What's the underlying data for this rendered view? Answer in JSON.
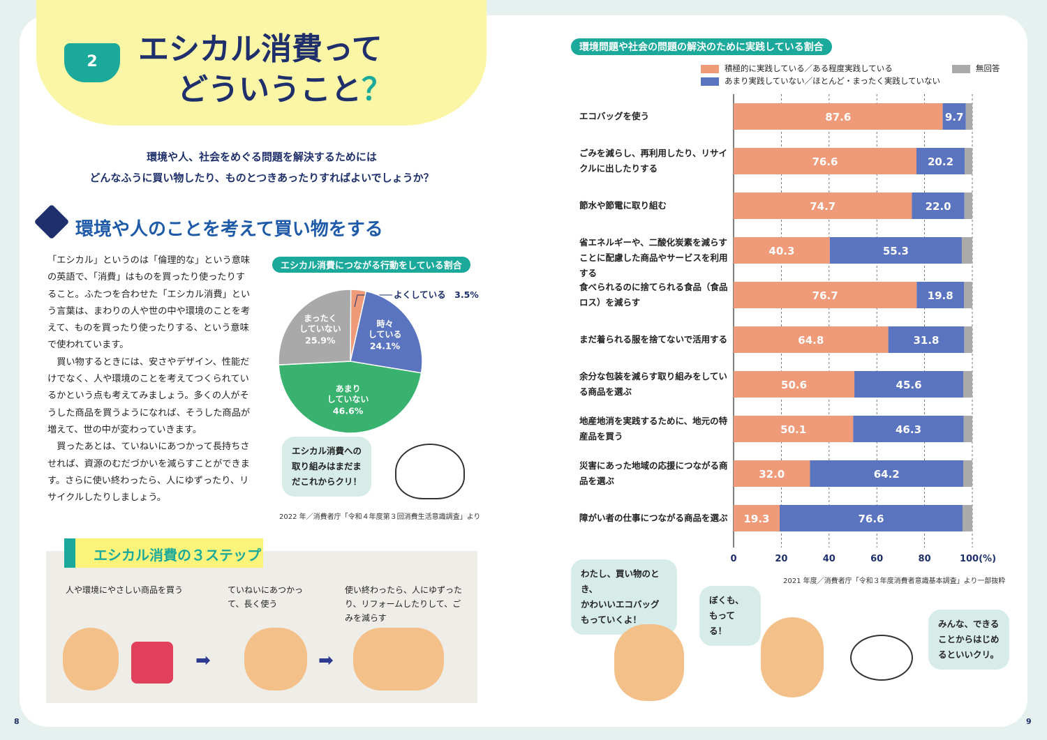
{
  "left": {
    "chapter_number": "2",
    "title_line1": "エシカル消費って",
    "title_line2": "どういうこと",
    "title_mark": "？",
    "lead_line1": "環境や人、社会をめぐる問題を解決するためには",
    "lead_line2": "どんなふうに買い物したり、ものとつきあったりすればよいでしょうか？",
    "section_title": "環境や人のことを考えて買い物をする",
    "paragraphs": [
      "「エシカル」というのは「倫理的な」という意味の英語で、「消費」はものを買ったり使ったりすること。ふたつを合わせた「エシカル消費」という言葉は、まわりの人や世の中や環境のことを考えて、ものを買ったり使ったりする、という意味で使われています。",
      "買い物するときには、安さやデザイン、性能だけでなく、人や環境のことを考えてつくられているかという点も考えてみましょう。多くの人がそうした商品を買うようになれば、そうした商品が増えて、世の中が変わっていきます。",
      "買ったあとは、ていねいにあつかって長持ちさせれば、資源のむだづかいを減らすことができます。さらに使い終わったら、人にゆずったり、リサイクルしたりしましょう。"
    ],
    "bubble": [
      "エシカル消費への",
      "取り組みはまだま",
      "だこれからクリ！"
    ],
    "pie_source": "2022 年／消費者庁「令和４年度第３回消費生活意識調査」より",
    "steps_title": "エシカル消費の３ステップ",
    "steps": [
      "人や環境にやさしい商品を買う",
      "ていねいにあつかって、長く使う",
      "使い終わったら、人にゆずったり、リフォームしたりして、ごみを減らす"
    ],
    "page_number": "8"
  },
  "right": {
    "bubbles": [
      [
        "わたし、買い物のとき、",
        "かわいいエコバッグ",
        "もっていくよ！"
      ],
      [
        "ぼくも、",
        "もってる！"
      ],
      [
        "みんな、できる",
        "ことからはじめ",
        "るといいクリ。"
      ]
    ],
    "bar_source": "2021 年度／消費者庁「令和３年度消費者意識基本調査」より一部抜粋",
    "page_number": "9"
  },
  "chart_data": [
    {
      "type": "pie",
      "title": "エシカル消費につながる行動をしている割合",
      "slices": [
        {
          "label": "よくしている",
          "value": 3.5,
          "color": "#ef9a78"
        },
        {
          "label": "時々 している",
          "value": 24.1,
          "color": "#5b74c0"
        },
        {
          "label": "あまり していない",
          "value": 46.6,
          "color": "#38b26e"
        },
        {
          "label": "まったく していない",
          "value": 25.9,
          "color": "#a9a9a9"
        }
      ]
    },
    {
      "type": "bar",
      "stacked": true,
      "orientation": "horizontal",
      "title": "環境問題や社会の問題の解決のために実践している割合",
      "legend": [
        "積極的に実践している／ある程度実践している",
        "あまり実践していない／ほとんど・まったく実践していない",
        "無回答"
      ],
      "colors": [
        "#ef9a78",
        "#5b74c0",
        "#aaaaaa"
      ],
      "xlim": [
        0,
        100
      ],
      "xticks": [
        "0",
        "20",
        "40",
        "60",
        "80",
        "100(%)"
      ],
      "categories": [
        "エコバッグを使う",
        "ごみを減らし、再利用したり、リサイクルに出したりする",
        "節水や節電に取り組む",
        "省エネルギーや、二酸化炭素を減らすことに配慮した商品やサービスを利用する",
        "食べられるのに捨てられる食品（食品ロス）を減らす",
        "まだ着られる服を捨てないで活用する",
        "余分な包装を減らす取り組みをしている商品を選ぶ",
        "地産地消を実践するために、地元の特産品を買う",
        "災害にあった地域の応援につながる商品を選ぶ",
        "障がい者の仕事につながる商品を選ぶ"
      ],
      "series": [
        {
          "name": "積極的に実践している／ある程度実践している",
          "values": [
            87.6,
            76.6,
            74.7,
            40.3,
            76.7,
            64.8,
            50.6,
            50.1,
            32.0,
            19.3
          ]
        },
        {
          "name": "あまり実践していない／ほとんど・まったく実践していない",
          "values": [
            9.7,
            20.2,
            22.0,
            55.3,
            19.8,
            31.8,
            45.6,
            46.3,
            64.2,
            76.6
          ]
        }
      ]
    }
  ]
}
